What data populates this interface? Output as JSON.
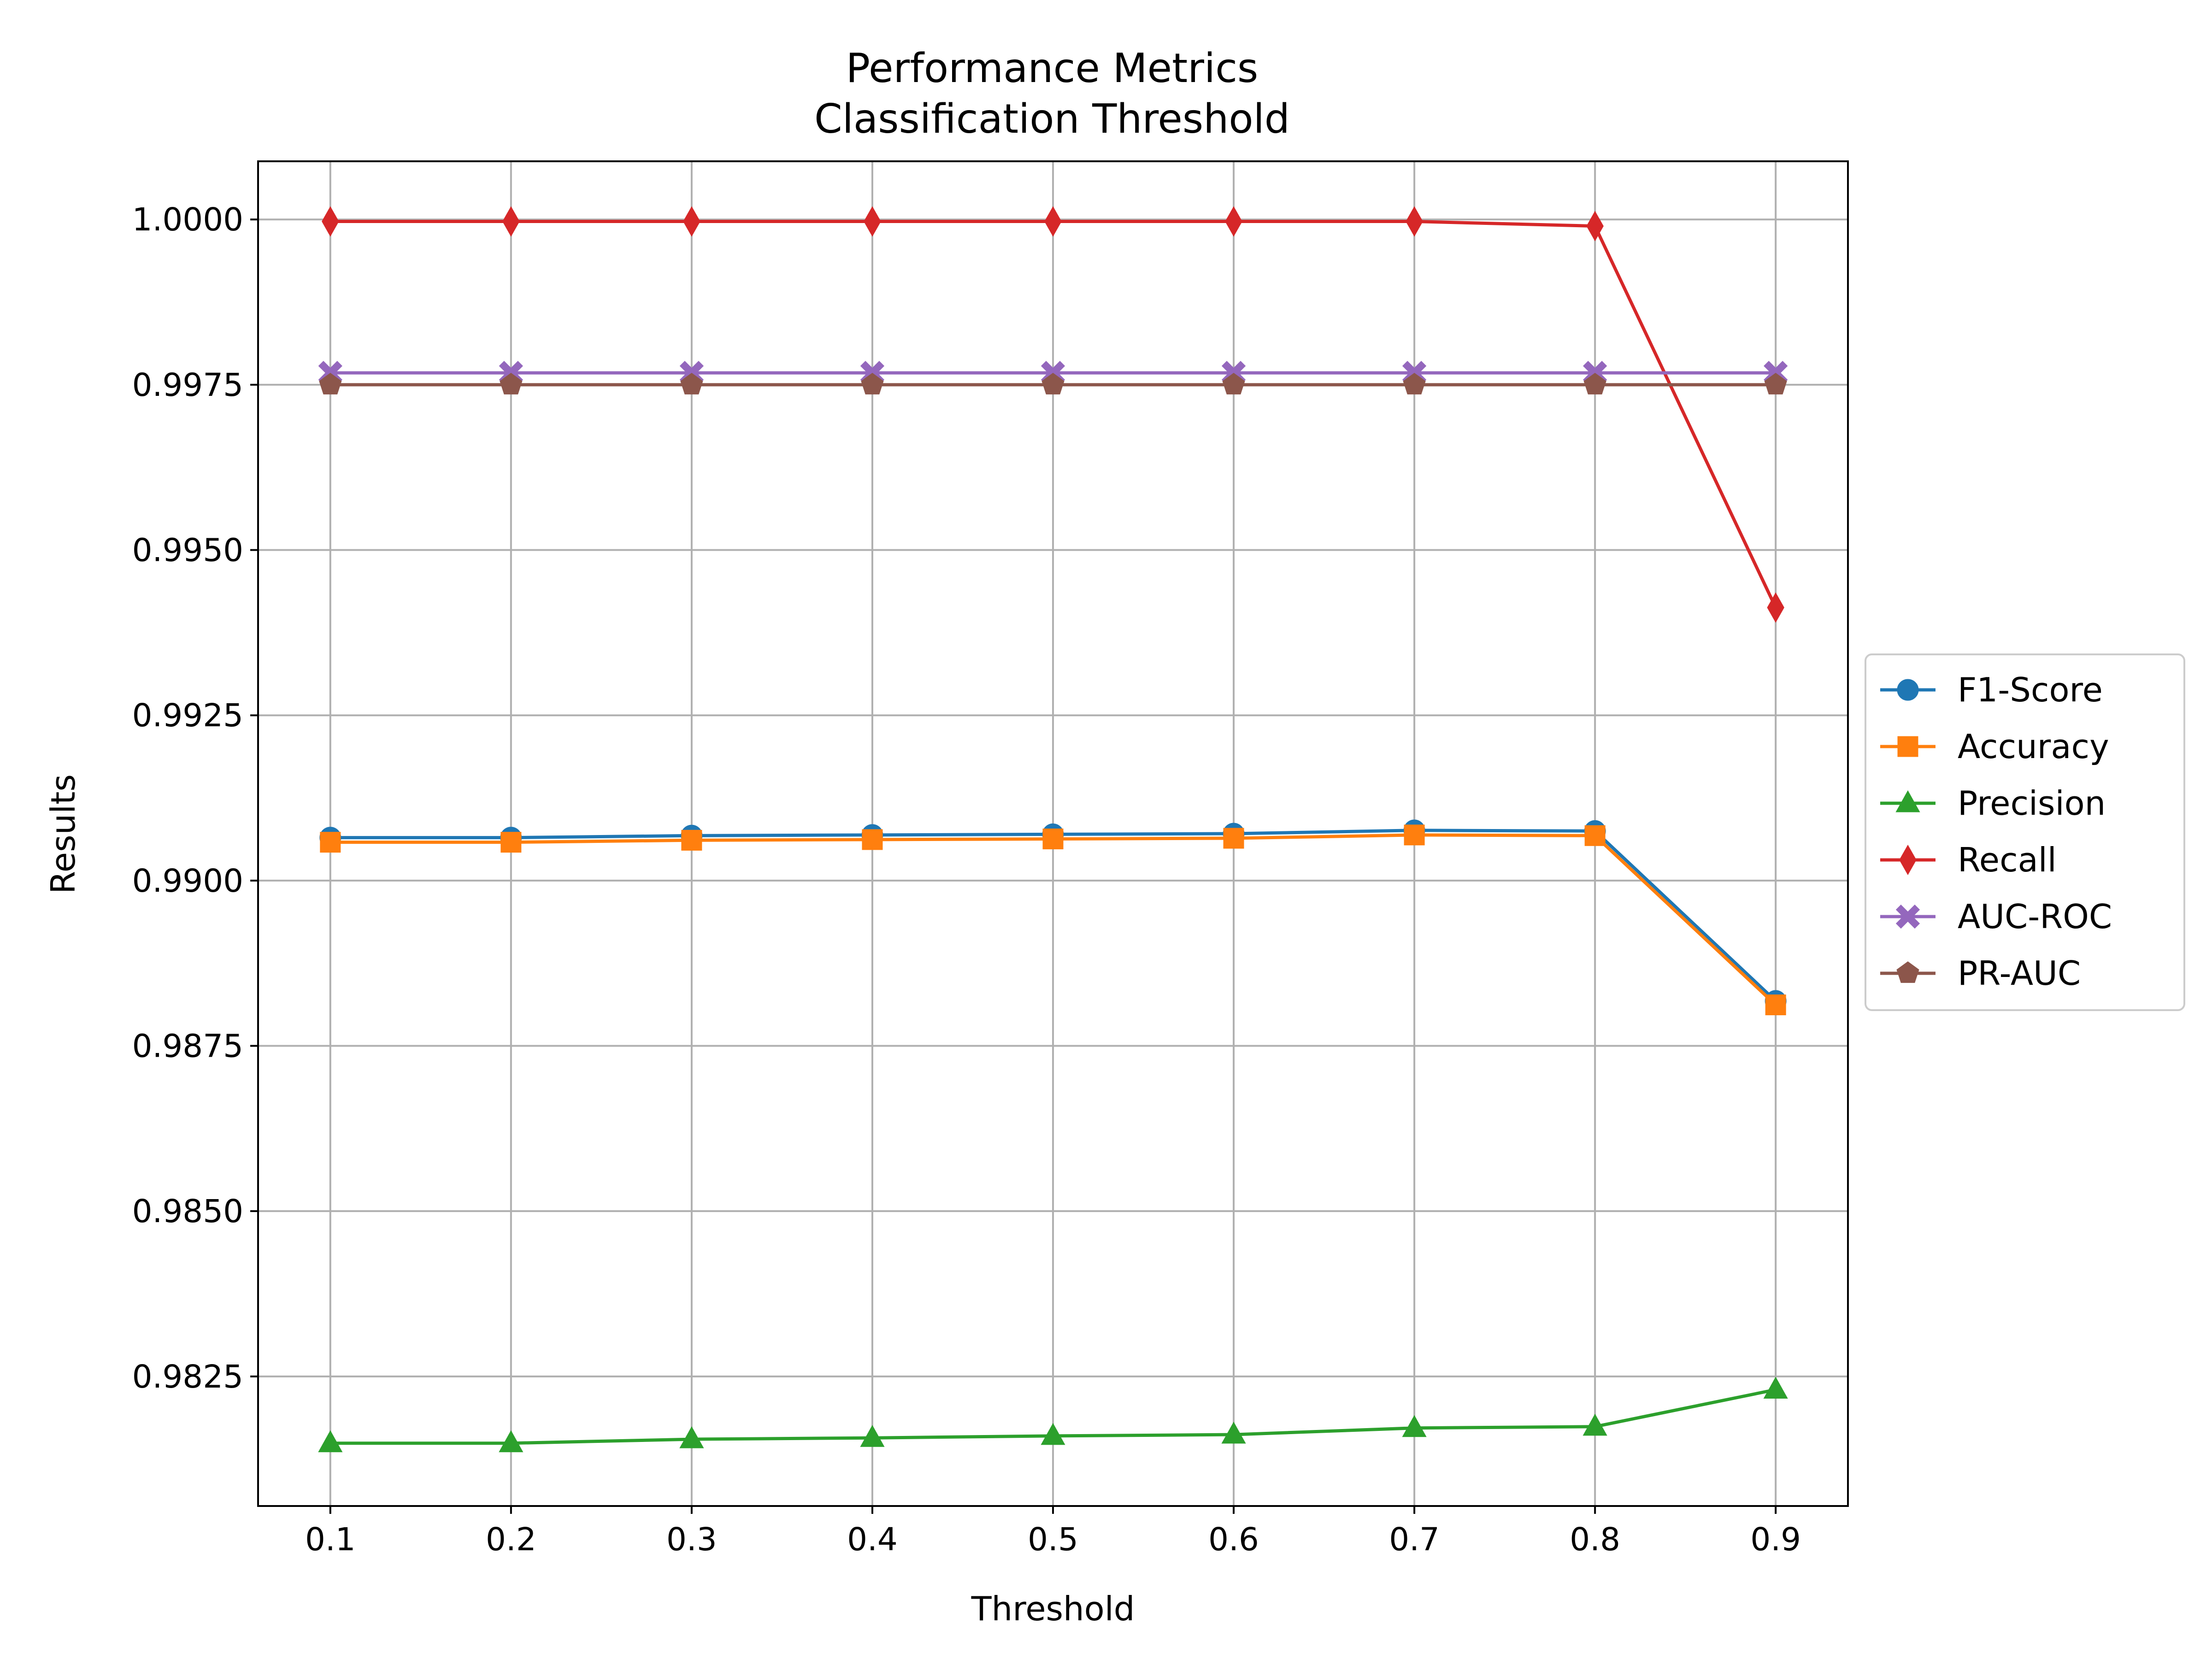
{
  "chart_data": {
    "type": "line",
    "title": "Performance Metrics",
    "subtitle": "Classification Threshold",
    "xlabel": "Threshold",
    "ylabel": "Results",
    "x": [
      0.1,
      0.2,
      0.3,
      0.4,
      0.5,
      0.6,
      0.7,
      0.8,
      0.9
    ],
    "x_tick_labels": [
      "0.1",
      "0.2",
      "0.3",
      "0.4",
      "0.5",
      "0.6",
      "0.7",
      "0.8",
      "0.9"
    ],
    "y_ticks": [
      0.9825,
      0.985,
      0.9875,
      0.99,
      0.9925,
      0.995,
      0.9975,
      1.0
    ],
    "y_tick_labels": [
      "0.9825",
      "0.9850",
      "0.9875",
      "0.9900",
      "0.9925",
      "0.9950",
      "0.9975",
      "1.0000"
    ],
    "xlim": [
      0.06,
      0.94
    ],
    "ylim": [
      0.98054,
      1.00088
    ],
    "grid": true,
    "legend_position": "center-right-outside",
    "series": [
      {
        "name": "F1-Score",
        "color": "#1f77b4",
        "marker": "circle",
        "values": [
          0.99065,
          0.99065,
          0.99068,
          0.99069,
          0.9907,
          0.99071,
          0.99076,
          0.99075,
          0.98818
        ]
      },
      {
        "name": "Accuracy",
        "color": "#ff7f0e",
        "marker": "square",
        "values": [
          0.99058,
          0.99058,
          0.99061,
          0.99062,
          0.99063,
          0.99064,
          0.99069,
          0.99068,
          0.98812
        ]
      },
      {
        "name": "Precision",
        "color": "#2ca02c",
        "marker": "triangle",
        "values": [
          0.98149,
          0.98149,
          0.98155,
          0.98157,
          0.9816,
          0.98162,
          0.98172,
          0.98174,
          0.9823
        ]
      },
      {
        "name": "Recall",
        "color": "#d62728",
        "marker": "diamond",
        "values": [
          0.99997,
          0.99997,
          0.99997,
          0.99997,
          0.99997,
          0.99997,
          0.99997,
          0.9999,
          0.99413
        ]
      },
      {
        "name": "AUC-ROC",
        "color": "#9467bd",
        "marker": "x-filled",
        "values": [
          0.99768,
          0.99768,
          0.99768,
          0.99768,
          0.99768,
          0.99768,
          0.99768,
          0.99768,
          0.99768
        ]
      },
      {
        "name": "PR-AUC",
        "color": "#8c564b",
        "marker": "pentagon",
        "values": [
          0.9975,
          0.9975,
          0.9975,
          0.9975,
          0.9975,
          0.9975,
          0.9975,
          0.9975,
          0.9975
        ]
      }
    ]
  }
}
